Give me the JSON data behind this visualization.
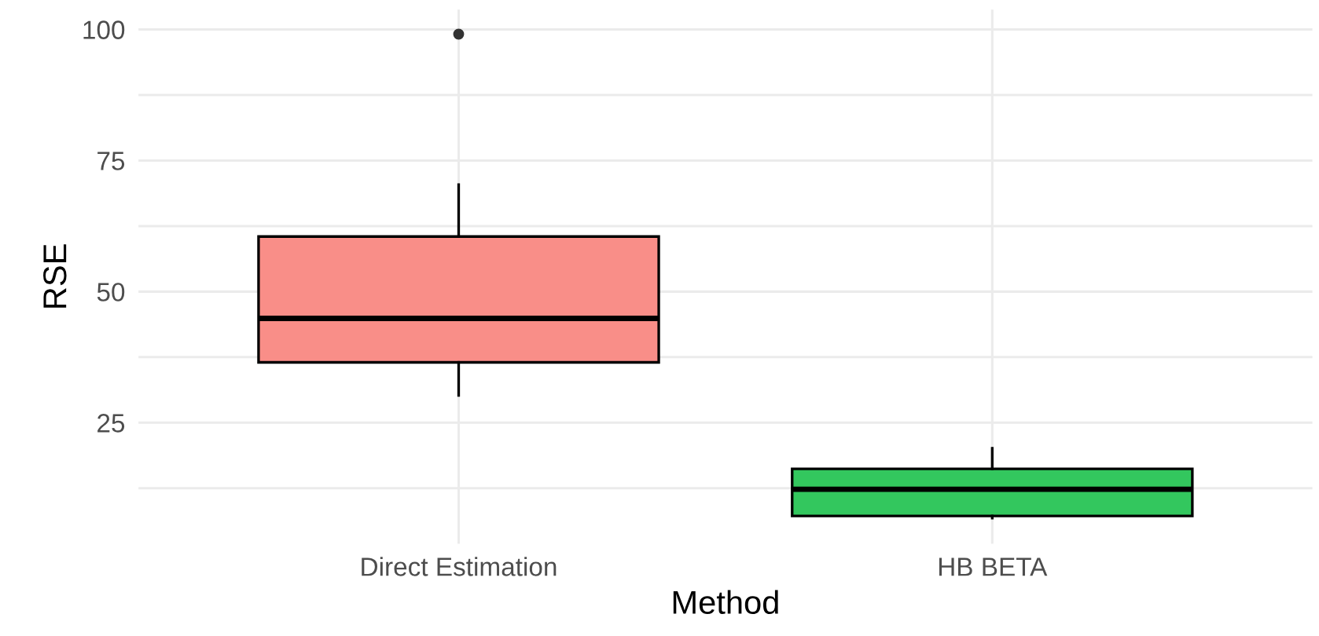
{
  "chart_data": {
    "type": "box",
    "xlabel": "Method",
    "ylabel": "RSE",
    "categories": [
      "Direct Estimation",
      "HB BETA"
    ],
    "boxes": [
      {
        "low": 30.2,
        "q1": 36.5,
        "median": 44.9,
        "q3": 60.5,
        "high": 70.4,
        "outliers": [
          99.1
        ]
      },
      {
        "low": 6.8,
        "q1": 7.2,
        "median": 12.3,
        "q3": 16.2,
        "high": 20.1
      }
    ],
    "colors": [
      "#f98e88",
      "#33c75e"
    ],
    "ylim": [
      1.9,
      103.8
    ],
    "yticks": [
      {
        "value": 12.5,
        "label": null
      },
      25,
      {
        "value": 37.5,
        "label": null
      },
      50,
      {
        "value": 62.5,
        "label": null
      },
      75,
      {
        "value": 87.5,
        "label": null
      },
      100
    ],
    "grid": true
  }
}
